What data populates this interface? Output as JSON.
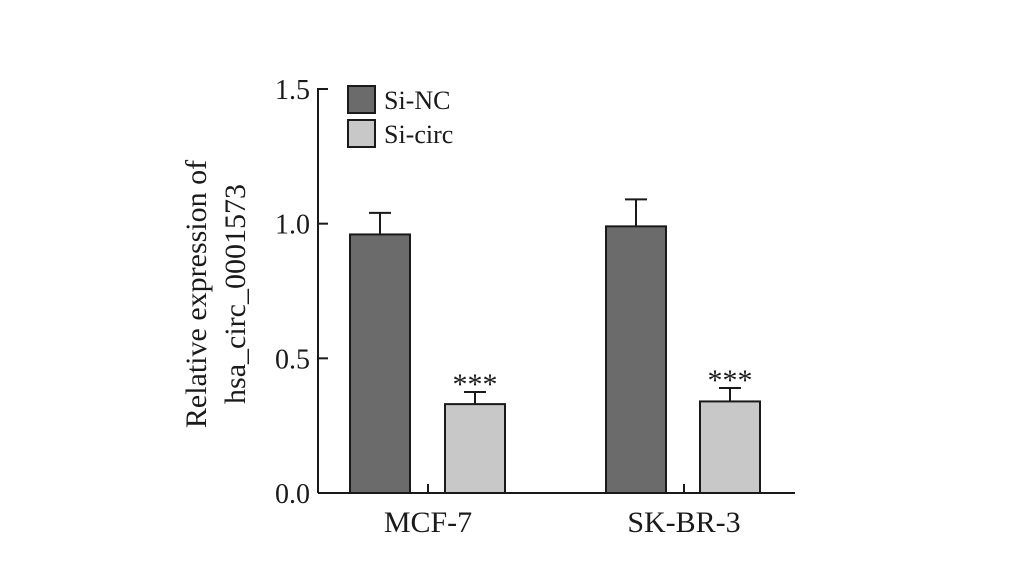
{
  "chart_data": {
    "type": "bar",
    "ylabel_lines": [
      "Relative expression of",
      "hsa_circ_0001573"
    ],
    "categories": [
      "MCF-7",
      "SK-BR-3"
    ],
    "ylim": [
      0,
      1.5
    ],
    "yticks": [
      "0.0",
      "0.5",
      "1.0",
      "1.5"
    ],
    "ytick_values": [
      0,
      0.5,
      1.0,
      1.5
    ],
    "legend_position": "top-left",
    "series": [
      {
        "name": "Si-NC",
        "values": [
          0.96,
          0.99
        ],
        "errors": [
          0.08,
          0.1
        ],
        "color": "#6b6b6b",
        "annotations": [
          "",
          ""
        ]
      },
      {
        "name": "Si-circ",
        "values": [
          0.33,
          0.34
        ],
        "errors": [
          0.045,
          0.05
        ],
        "color": "#c8c8c8",
        "annotations": [
          "***",
          "***"
        ]
      }
    ]
  }
}
